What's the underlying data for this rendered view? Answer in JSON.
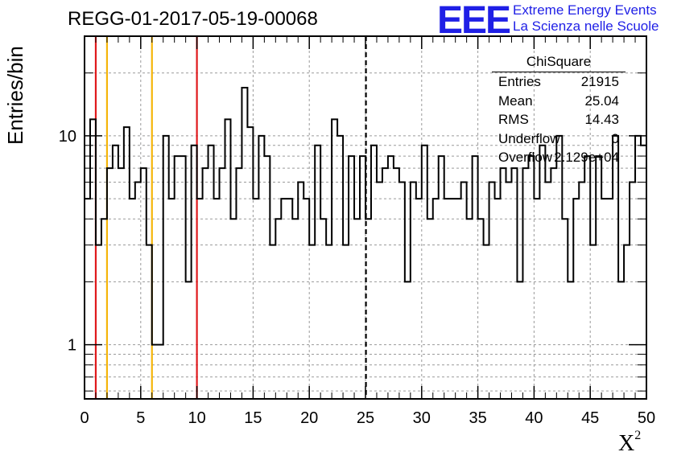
{
  "chart_data": {
    "type": "histogram",
    "title": "REGG-01-2017-05-19-00068",
    "xlabel": "X",
    "xlabel_superscript": "2",
    "ylabel": "Entries/bin",
    "xlim": [
      0,
      50
    ],
    "ylim": [
      0.55,
      30
    ],
    "yscale": "log",
    "grid": true,
    "bin_width": 0.5,
    "x_ticks": [
      0,
      5,
      10,
      15,
      20,
      25,
      30,
      35,
      40,
      45,
      50
    ],
    "x_tick_labels": [
      "0",
      "5",
      "10",
      "15",
      "20",
      "25",
      "30",
      "35",
      "40",
      "45",
      "50"
    ],
    "y_tick_labels": [
      {
        "value": 1,
        "label": "1"
      },
      {
        "value": 10,
        "label": "10"
      }
    ],
    "values": [
      5,
      12,
      3,
      4,
      7,
      9,
      7,
      11,
      5,
      6,
      7,
      3,
      1,
      1,
      10,
      5,
      8,
      8,
      2,
      9,
      5,
      7,
      9,
      5,
      7,
      12,
      4,
      7,
      17,
      11,
      5,
      10,
      8,
      3,
      4,
      5,
      5,
      4,
      6,
      5,
      3,
      9,
      4,
      3,
      12,
      10,
      3,
      8,
      4,
      8,
      4,
      9,
      6,
      7,
      8,
      7,
      6,
      2,
      6,
      5,
      9,
      4,
      5,
      8,
      5,
      5,
      5,
      6,
      4,
      8,
      4,
      3,
      6,
      5,
      7,
      6,
      7,
      2,
      7,
      8,
      5,
      9,
      6,
      7,
      10,
      4,
      2,
      5,
      6,
      8,
      3,
      8,
      5,
      5,
      10,
      2,
      3,
      6,
      10,
      9
    ],
    "vertical_lines": [
      {
        "x": 1,
        "color": "#e0191c",
        "style": "solid"
      },
      {
        "x": 2,
        "color": "#f5b50a",
        "style": "solid"
      },
      {
        "x": 6,
        "color": "#f5b50a",
        "style": "solid"
      },
      {
        "x": 10,
        "color": "#e0191c",
        "style": "solid"
      },
      {
        "x": 25.04,
        "color": "#000000",
        "style": "dashed"
      }
    ]
  },
  "logo": {
    "mark": "EEE",
    "line1": "Extreme Energy Events",
    "line2": "La Scienza nelle Scuole",
    "color": "#1f1fe6"
  },
  "stats": {
    "title": "ChiSquare",
    "rows": [
      {
        "key": "Entries",
        "value": "21915"
      },
      {
        "key": "Mean",
        "value": "25.04"
      },
      {
        "key": "RMS",
        "value": "14.43"
      },
      {
        "key": "Underflow",
        "value": "0"
      },
      {
        "key": "Overflow",
        "value": "2.129e+04"
      }
    ]
  }
}
